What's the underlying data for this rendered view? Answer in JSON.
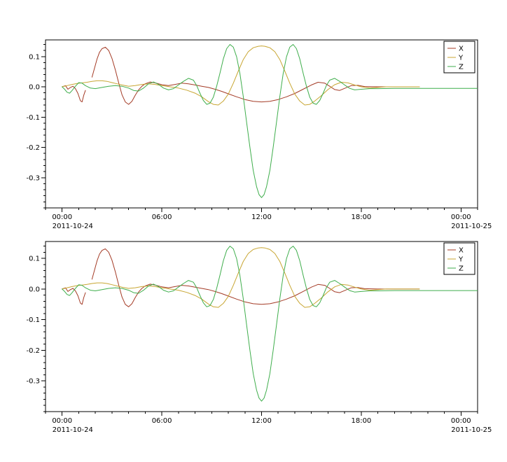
{
  "window": {
    "background_color": "#ffffff"
  },
  "chart_data": {
    "type": "line",
    "title": "",
    "xlabel": "",
    "ylabel": "",
    "panels": [
      "top",
      "bottom"
    ],
    "panels_show_identical_series": true,
    "xlim_hours": [
      -1,
      25
    ],
    "ylim": [
      -0.4,
      0.155
    ],
    "x_major_ticks": [
      {
        "hour": 0,
        "label": "00:00"
      },
      {
        "hour": 6,
        "label": "06:00"
      },
      {
        "hour": 12,
        "label": "12:00"
      },
      {
        "hour": 18,
        "label": "18:00"
      },
      {
        "hour": 24,
        "label": "00:00"
      }
    ],
    "x_minor_step_hours": 1,
    "y_major_ticks": [
      0.1,
      0.0,
      -0.1,
      -0.2,
      -0.3
    ],
    "y_tick_labels": [
      "0.1",
      "0.0",
      "-0.1",
      "-0.2",
      "-0.3"
    ],
    "y_minor_step": 0.02,
    "date_labels": {
      "start": "2011-10-24",
      "end": "2011-10-25"
    },
    "axis_color": "#000000",
    "grid": false,
    "legend": {
      "position": "top-right",
      "entries": [
        {
          "name": "X",
          "color": "#a43b26"
        },
        {
          "name": "Y",
          "color": "#c8a633"
        },
        {
          "name": "Z",
          "color": "#3fae4c"
        }
      ]
    },
    "series": [
      {
        "name": "X",
        "color": "#a43b26",
        "points": [
          [
            0,
            0
          ],
          [
            0.2,
            0.004
          ],
          [
            0.35,
            -0.008
          ],
          [
            0.5,
            -0.002
          ],
          [
            0.65,
            0.002
          ],
          [
            0.8,
            -0.006
          ],
          [
            0.95,
            -0.022
          ],
          [
            1.1,
            -0.046
          ],
          [
            1.2,
            -0.05
          ],
          [
            1.3,
            -0.028
          ],
          [
            1.4,
            -0.012
          ],
          [
            1.55,
            null
          ],
          [
            1.8,
            0.032
          ],
          [
            1.95,
            0.062
          ],
          [
            2.1,
            0.092
          ],
          [
            2.25,
            0.114
          ],
          [
            2.4,
            0.126
          ],
          [
            2.6,
            0.131
          ],
          [
            2.8,
            0.12
          ],
          [
            3.0,
            0.094
          ],
          [
            3.2,
            0.056
          ],
          [
            3.4,
            0.014
          ],
          [
            3.6,
            -0.026
          ],
          [
            3.8,
            -0.05
          ],
          [
            4.0,
            -0.058
          ],
          [
            4.2,
            -0.048
          ],
          [
            4.4,
            -0.028
          ],
          [
            4.6,
            -0.01
          ],
          [
            4.8,
            0.002
          ],
          [
            5.0,
            0.01
          ],
          [
            5.3,
            0.016
          ],
          [
            5.6,
            0.013
          ],
          [
            6.0,
            0.007
          ],
          [
            6.4,
            0.004
          ],
          [
            6.8,
            0.008
          ],
          [
            7.2,
            0.012
          ],
          [
            7.6,
            0.01
          ],
          [
            8.0,
            0.006
          ],
          [
            8.4,
            0.002
          ],
          [
            8.8,
            -0.002
          ],
          [
            9.2,
            -0.008
          ],
          [
            9.6,
            -0.015
          ],
          [
            10.0,
            -0.023
          ],
          [
            10.5,
            -0.033
          ],
          [
            11.0,
            -0.042
          ],
          [
            11.5,
            -0.048
          ],
          [
            12.0,
            -0.05
          ],
          [
            12.5,
            -0.048
          ],
          [
            13.0,
            -0.042
          ],
          [
            13.5,
            -0.033
          ],
          [
            14.0,
            -0.022
          ],
          [
            14.5,
            -0.008
          ],
          [
            15.0,
            0.006
          ],
          [
            15.4,
            0.015
          ],
          [
            15.8,
            0.012
          ],
          [
            16.1,
            0.002
          ],
          [
            16.4,
            -0.009
          ],
          [
            16.7,
            -0.012
          ],
          [
            17.0,
            -0.005
          ],
          [
            17.4,
            0.004
          ],
          [
            17.8,
            0.005
          ],
          [
            18.2,
            0.001
          ],
          [
            19.0,
            0
          ],
          [
            20.0,
            0
          ],
          [
            21.0,
            0
          ],
          [
            21.5,
            0
          ]
        ]
      },
      {
        "name": "Y",
        "color": "#c8a633",
        "points": [
          [
            0,
            0
          ],
          [
            0.3,
            0.004
          ],
          [
            0.6,
            0.008
          ],
          [
            0.9,
            0.011
          ],
          [
            1.2,
            0.013
          ],
          [
            1.5,
            0.015
          ],
          [
            1.8,
            0.018
          ],
          [
            2.1,
            0.02
          ],
          [
            2.4,
            0.02
          ],
          [
            2.7,
            0.018
          ],
          [
            3.0,
            0.014
          ],
          [
            3.3,
            0.01
          ],
          [
            3.6,
            0.006
          ],
          [
            4.0,
            0.002
          ],
          [
            4.4,
            0.004
          ],
          [
            4.8,
            0.008
          ],
          [
            5.2,
            0.01
          ],
          [
            5.6,
            0.008
          ],
          [
            6.0,
            0.004
          ],
          [
            6.5,
            0
          ],
          [
            7.0,
            -0.004
          ],
          [
            7.5,
            -0.011
          ],
          [
            8.0,
            -0.021
          ],
          [
            8.4,
            -0.033
          ],
          [
            8.8,
            -0.049
          ],
          [
            9.1,
            -0.058
          ],
          [
            9.4,
            -0.06
          ],
          [
            9.7,
            -0.047
          ],
          [
            10.0,
            -0.024
          ],
          [
            10.3,
            0.012
          ],
          [
            10.6,
            0.052
          ],
          [
            10.9,
            0.09
          ],
          [
            11.2,
            0.116
          ],
          [
            11.5,
            0.129
          ],
          [
            11.8,
            0.134
          ],
          [
            12.0,
            0.135
          ],
          [
            12.2,
            0.134
          ],
          [
            12.5,
            0.129
          ],
          [
            12.8,
            0.116
          ],
          [
            13.1,
            0.09
          ],
          [
            13.4,
            0.052
          ],
          [
            13.7,
            0.012
          ],
          [
            14.0,
            -0.024
          ],
          [
            14.3,
            -0.047
          ],
          [
            14.6,
            -0.06
          ],
          [
            14.9,
            -0.058
          ],
          [
            15.2,
            -0.047
          ],
          [
            15.6,
            -0.029
          ],
          [
            16.0,
            -0.009
          ],
          [
            16.4,
            0.007
          ],
          [
            16.8,
            0.015
          ],
          [
            17.2,
            0.013
          ],
          [
            17.6,
            0.006
          ],
          [
            18.0,
            0
          ],
          [
            18.5,
            -0.004
          ],
          [
            19.0,
            -0.002
          ],
          [
            19.5,
            0
          ],
          [
            20.5,
            0
          ],
          [
            21.5,
            0
          ]
        ]
      },
      {
        "name": "Z",
        "color": "#3fae4c",
        "points": [
          [
            0,
            0
          ],
          [
            0.15,
            -0.008
          ],
          [
            0.3,
            -0.018
          ],
          [
            0.45,
            -0.021
          ],
          [
            0.6,
            -0.012
          ],
          [
            0.8,
            0.002
          ],
          [
            1.0,
            0.014
          ],
          [
            1.2,
            0.012
          ],
          [
            1.4,
            0.004
          ],
          [
            1.7,
            -0.004
          ],
          [
            2.0,
            -0.006
          ],
          [
            2.4,
            -0.002
          ],
          [
            2.8,
            0.002
          ],
          [
            3.2,
            0.004
          ],
          [
            3.6,
            0.002
          ],
          [
            4.0,
            -0.004
          ],
          [
            4.3,
            -0.012
          ],
          [
            4.6,
            -0.014
          ],
          [
            4.9,
            -0.004
          ],
          [
            5.2,
            0.01
          ],
          [
            5.5,
            0.016
          ],
          [
            5.8,
            0.008
          ],
          [
            6.1,
            -0.004
          ],
          [
            6.4,
            -0.01
          ],
          [
            6.7,
            -0.006
          ],
          [
            7.0,
            0.006
          ],
          [
            7.3,
            0.018
          ],
          [
            7.6,
            0.028
          ],
          [
            7.9,
            0.022
          ],
          [
            8.1,
            0.004
          ],
          [
            8.3,
            -0.022
          ],
          [
            8.5,
            -0.045
          ],
          [
            8.7,
            -0.058
          ],
          [
            8.9,
            -0.054
          ],
          [
            9.1,
            -0.034
          ],
          [
            9.3,
            0.002
          ],
          [
            9.5,
            0.046
          ],
          [
            9.7,
            0.092
          ],
          [
            9.9,
            0.126
          ],
          [
            10.1,
            0.14
          ],
          [
            10.3,
            0.131
          ],
          [
            10.5,
            0.099
          ],
          [
            10.7,
            0.044
          ],
          [
            10.9,
            -0.032
          ],
          [
            11.1,
            -0.116
          ],
          [
            11.3,
            -0.2
          ],
          [
            11.5,
            -0.276
          ],
          [
            11.7,
            -0.33
          ],
          [
            11.85,
            -0.356
          ],
          [
            12.0,
            -0.366
          ],
          [
            12.15,
            -0.356
          ],
          [
            12.3,
            -0.33
          ],
          [
            12.5,
            -0.276
          ],
          [
            12.7,
            -0.2
          ],
          [
            12.9,
            -0.116
          ],
          [
            13.1,
            -0.032
          ],
          [
            13.3,
            0.044
          ],
          [
            13.5,
            0.099
          ],
          [
            13.7,
            0.131
          ],
          [
            13.9,
            0.14
          ],
          [
            14.1,
            0.126
          ],
          [
            14.3,
            0.092
          ],
          [
            14.5,
            0.046
          ],
          [
            14.7,
            0.002
          ],
          [
            14.9,
            -0.034
          ],
          [
            15.1,
            -0.054
          ],
          [
            15.3,
            -0.058
          ],
          [
            15.5,
            -0.045
          ],
          [
            15.7,
            -0.022
          ],
          [
            15.9,
            0.004
          ],
          [
            16.1,
            0.022
          ],
          [
            16.4,
            0.028
          ],
          [
            16.7,
            0.018
          ],
          [
            17.0,
            0.006
          ],
          [
            17.3,
            -0.005
          ],
          [
            17.6,
            -0.01
          ],
          [
            18.0,
            -0.008
          ],
          [
            18.5,
            -0.006
          ],
          [
            19.0,
            -0.006
          ],
          [
            20.0,
            -0.005
          ],
          [
            21.0,
            -0.005
          ],
          [
            22.0,
            -0.005
          ],
          [
            23.0,
            -0.005
          ],
          [
            24.0,
            -0.005
          ],
          [
            25.0,
            -0.005
          ]
        ]
      }
    ]
  }
}
